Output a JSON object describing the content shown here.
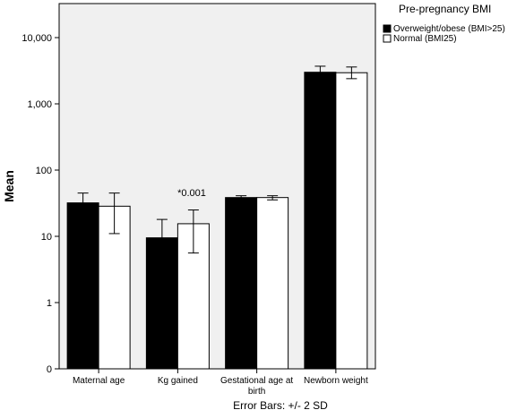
{
  "chart_data": {
    "type": "bar",
    "yscale": "log",
    "ylabel": "Mean",
    "categories": [
      "Maternal age",
      "Kg gained",
      "Gestational age at",
      "Newborn weight"
    ],
    "category_sublabels": [
      "",
      "",
      "birth",
      ""
    ],
    "y_ticks": [
      "0",
      "1",
      "10",
      "100",
      "1,000",
      "10,000"
    ],
    "legend": {
      "title": "Pre-pregnancy BMI",
      "position": "top-right",
      "items": [
        "Overweight/obese (BMI>25)",
        "Normal (BMI25)"
      ]
    },
    "series": [
      {
        "name": "Overweight/obese (BMI>25)",
        "color": "#000000",
        "values": [
          32,
          9.5,
          38.5,
          3000
        ],
        "err_low": [
          21,
          4.5,
          36,
          2500
        ],
        "err_high": [
          45,
          18,
          41,
          3700
        ]
      },
      {
        "name": "Normal (BMI25)",
        "color": "#ffffff",
        "values": [
          28.5,
          15.5,
          38.5,
          2950
        ],
        "err_low": [
          11,
          5.6,
          35.5,
          2400
        ],
        "err_high": [
          45,
          25,
          41,
          3600
        ]
      }
    ],
    "annotations": [
      {
        "text": "*0.001",
        "category": "Kg gained"
      }
    ],
    "footnote": "Error Bars: +/- 2 SD",
    "plot_background": "#f0f0f0",
    "grid": false
  }
}
